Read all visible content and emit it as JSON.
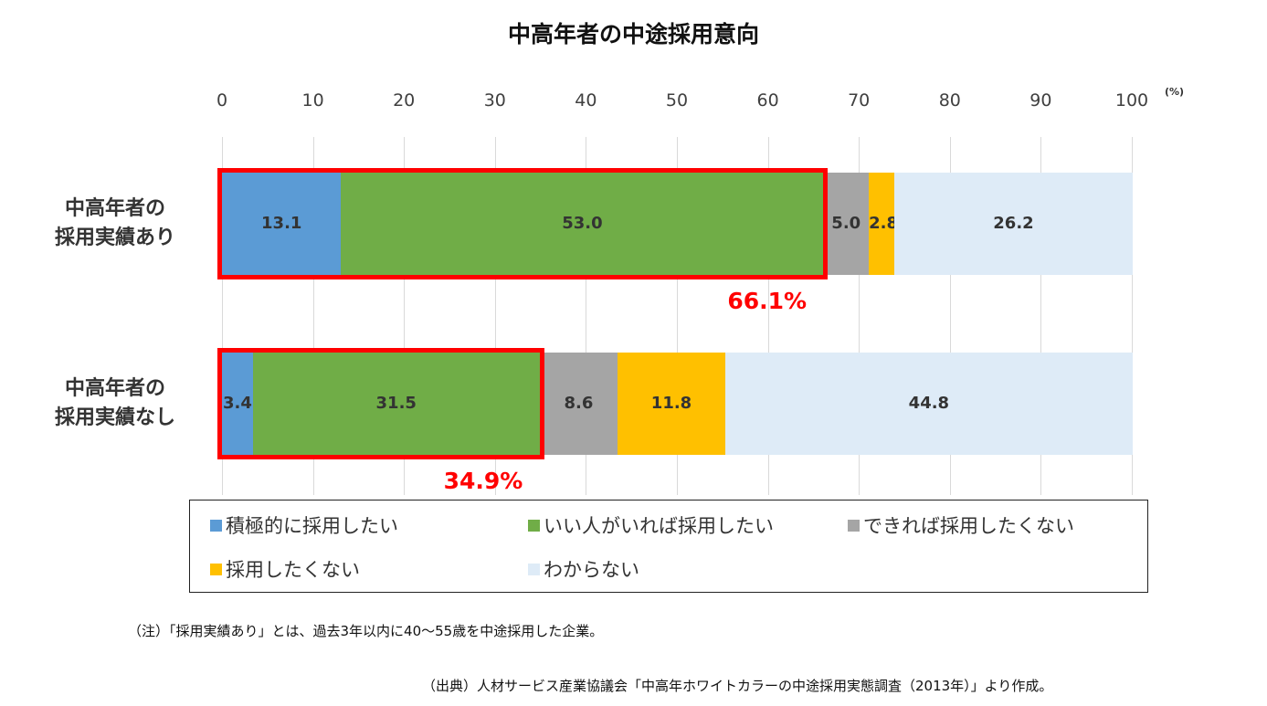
{
  "chart_data": {
    "type": "bar",
    "orientation": "horizontal",
    "stacked": true,
    "title": "中高年者の中途採用意向",
    "unit": "(%)",
    "xlim": [
      0,
      100
    ],
    "x_ticks": [
      "0",
      "10",
      "20",
      "30",
      "40",
      "50",
      "60",
      "70",
      "80",
      "90",
      "100"
    ],
    "grid": true,
    "legend_position": "bottom",
    "categories": [
      [
        "中高年者の",
        "採用実績あり"
      ],
      [
        "中高年者の",
        "採用実績なし"
      ]
    ],
    "series": [
      {
        "name": "積極的に採用したい",
        "color": "#5b9bd5",
        "values": [
          13.1,
          3.4
        ],
        "labels": [
          "13.1",
          "3.4"
        ]
      },
      {
        "name": "いい人がいれば採用したい",
        "color": "#70ad47",
        "values": [
          53.0,
          31.5
        ],
        "labels": [
          "53.0",
          "31.5"
        ]
      },
      {
        "name": "できれば採用したくない",
        "color": "#a5a5a5",
        "values": [
          5.0,
          8.6
        ],
        "labels": [
          "5.0",
          "8.6"
        ]
      },
      {
        "name": "採用したくない",
        "color": "#ffc000",
        "values": [
          2.8,
          11.8
        ],
        "labels": [
          "2.8",
          "11.8"
        ]
      },
      {
        "name": "わからない",
        "color": "#deebf7",
        "values": [
          26.2,
          44.8
        ],
        "labels": [
          "26.2",
          "44.8"
        ]
      }
    ],
    "annotations": [
      {
        "category_index": 0,
        "value": 66.1,
        "text": "66.1%",
        "color": "#ff0000"
      },
      {
        "category_index": 1,
        "value": 34.9,
        "text": "34.9%",
        "color": "#ff0000"
      }
    ]
  },
  "footnotes": {
    "note": "（注）「採用実績あり」とは、過去3年以内に40〜55歳を中途採用した企業。",
    "source": "（出典）人材サービス産業協議会「中高年ホワイトカラーの中途採用実態調査（2013年）」より作成。"
  }
}
